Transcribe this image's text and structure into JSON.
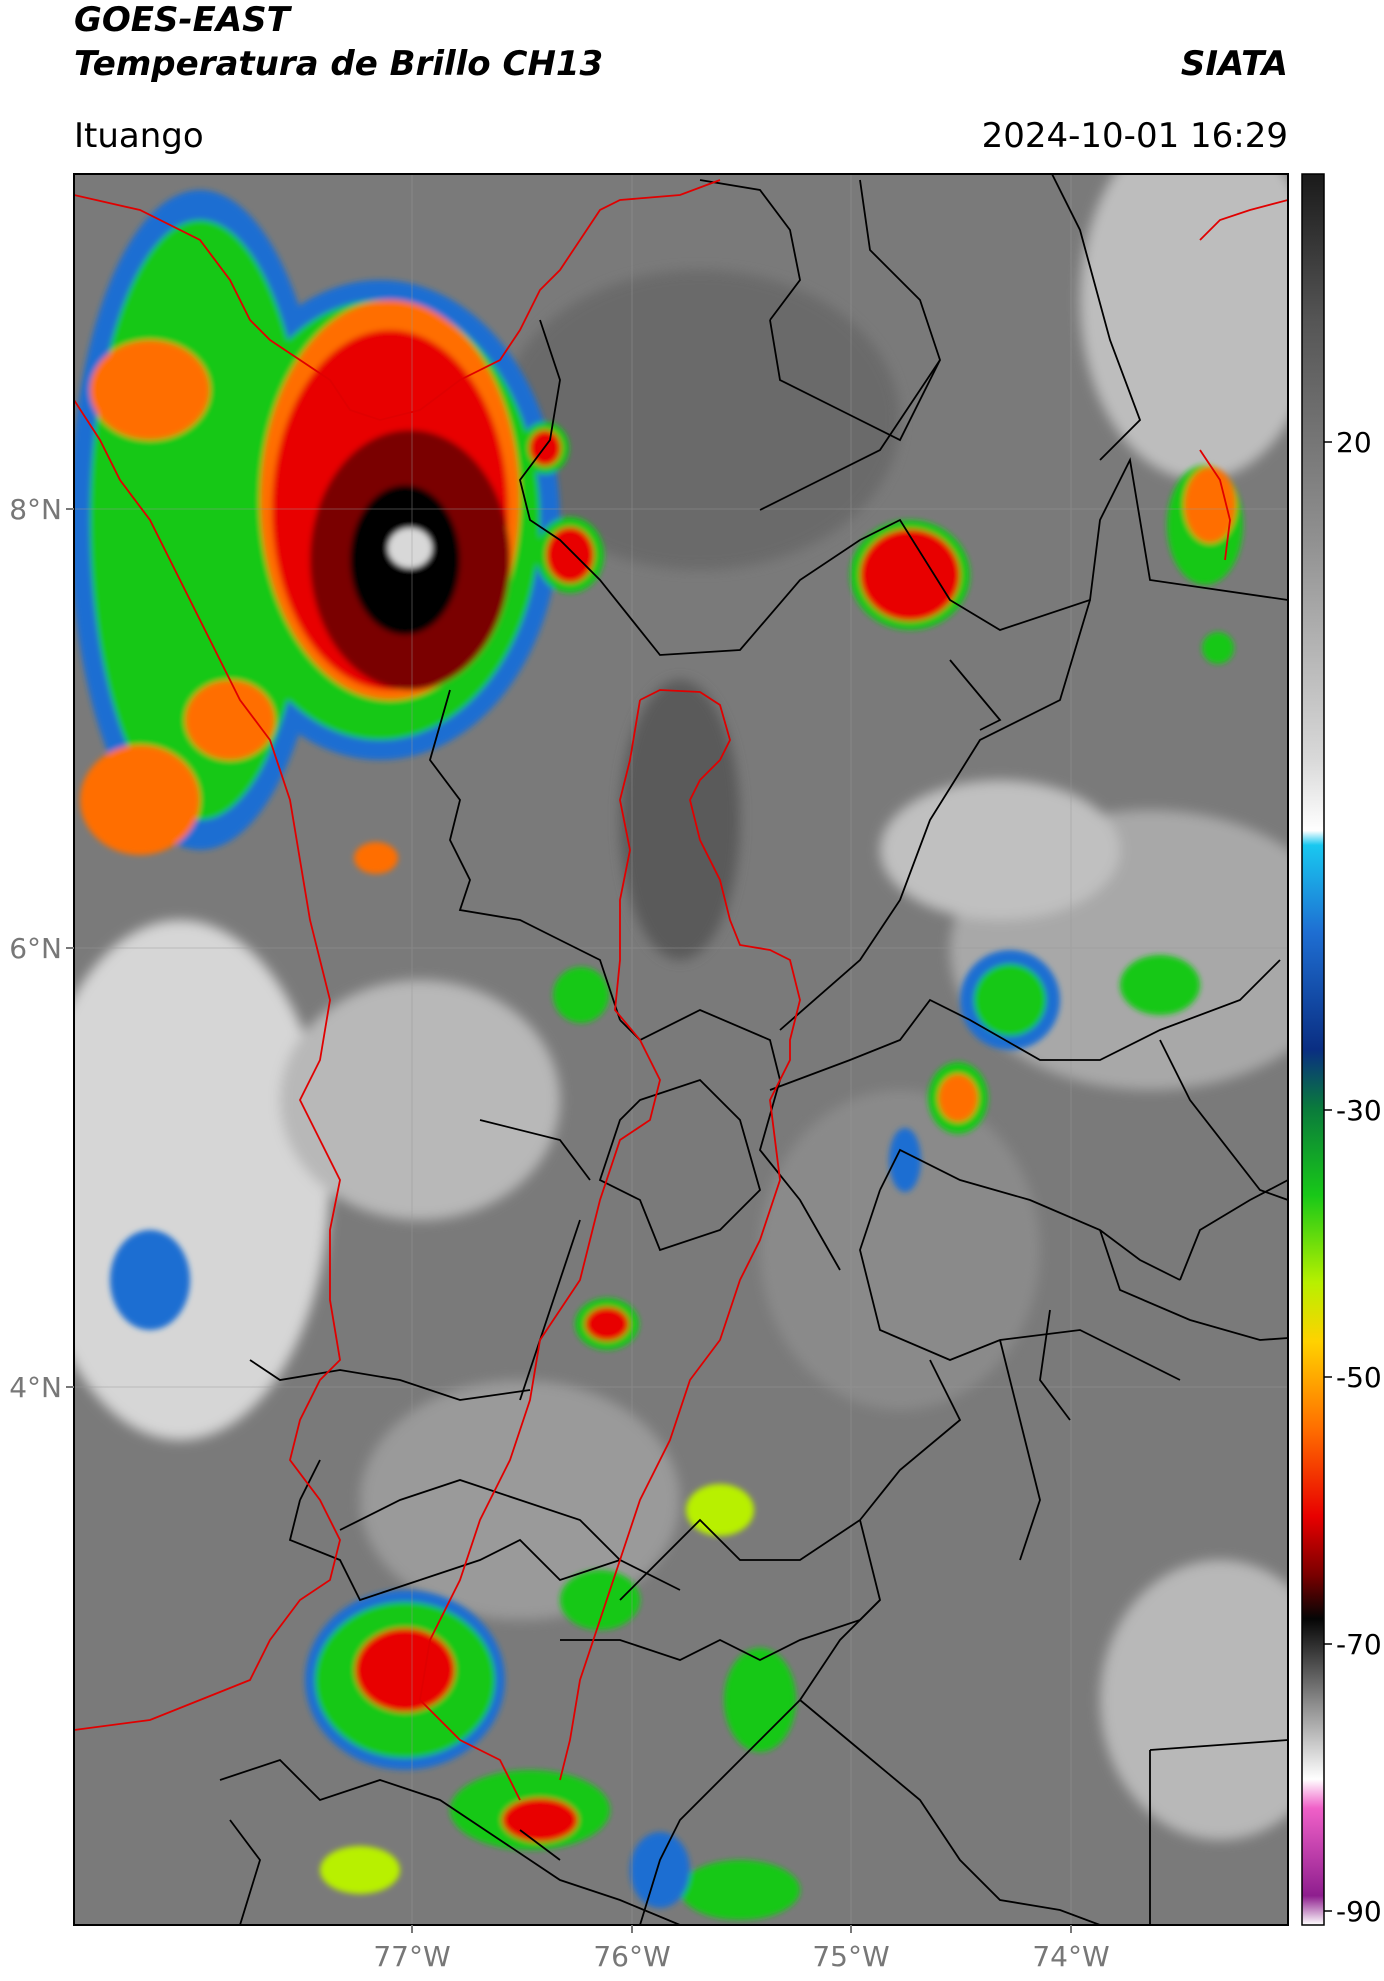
{
  "header": {
    "title_line1": "GOES-EAST",
    "title_line2": "Temperatura de Brillo CH13",
    "organization": "SIATA",
    "location": "Ituango",
    "datetime": "2024-10-01 16:29"
  },
  "map": {
    "lat_labels": [
      "8°N",
      "6°N",
      "4°N"
    ],
    "lon_labels": [
      "77°W",
      "76°W",
      "75°W",
      "74°W"
    ],
    "boundary_colors": {
      "department": "#000000",
      "region": "#e00000"
    }
  },
  "colorbar": {
    "tick_labels": [
      "20",
      "-30",
      "-50",
      "-70",
      "-90"
    ],
    "stops": [
      {
        "value": 30,
        "color": "#1a1a1a"
      },
      {
        "value": 20,
        "color": "#555555"
      },
      {
        "value": 5,
        "color": "#909090"
      },
      {
        "value": -10,
        "color": "#d8d8d8"
      },
      {
        "value": -15,
        "color": "#ffffff"
      },
      {
        "value": -16,
        "color": "#19c8f0"
      },
      {
        "value": -22,
        "color": "#1e6ed2"
      },
      {
        "value": -30,
        "color": "#0a2e82"
      },
      {
        "value": -34,
        "color": "#0a7a3c"
      },
      {
        "value": -40,
        "color": "#18c818"
      },
      {
        "value": -46,
        "color": "#b8f000"
      },
      {
        "value": -50,
        "color": "#ffd200"
      },
      {
        "value": -56,
        "color": "#ff6e00"
      },
      {
        "value": -62,
        "color": "#e80000"
      },
      {
        "value": -66,
        "color": "#7a0000"
      },
      {
        "value": -69,
        "color": "#050505"
      },
      {
        "value": -75,
        "color": "#909090"
      },
      {
        "value": -80,
        "color": "#ffffff"
      },
      {
        "value": -82,
        "color": "#f060c8"
      },
      {
        "value": -88,
        "color": "#8e1e8e"
      },
      {
        "value": -90,
        "color": "#ffffff"
      }
    ]
  }
}
